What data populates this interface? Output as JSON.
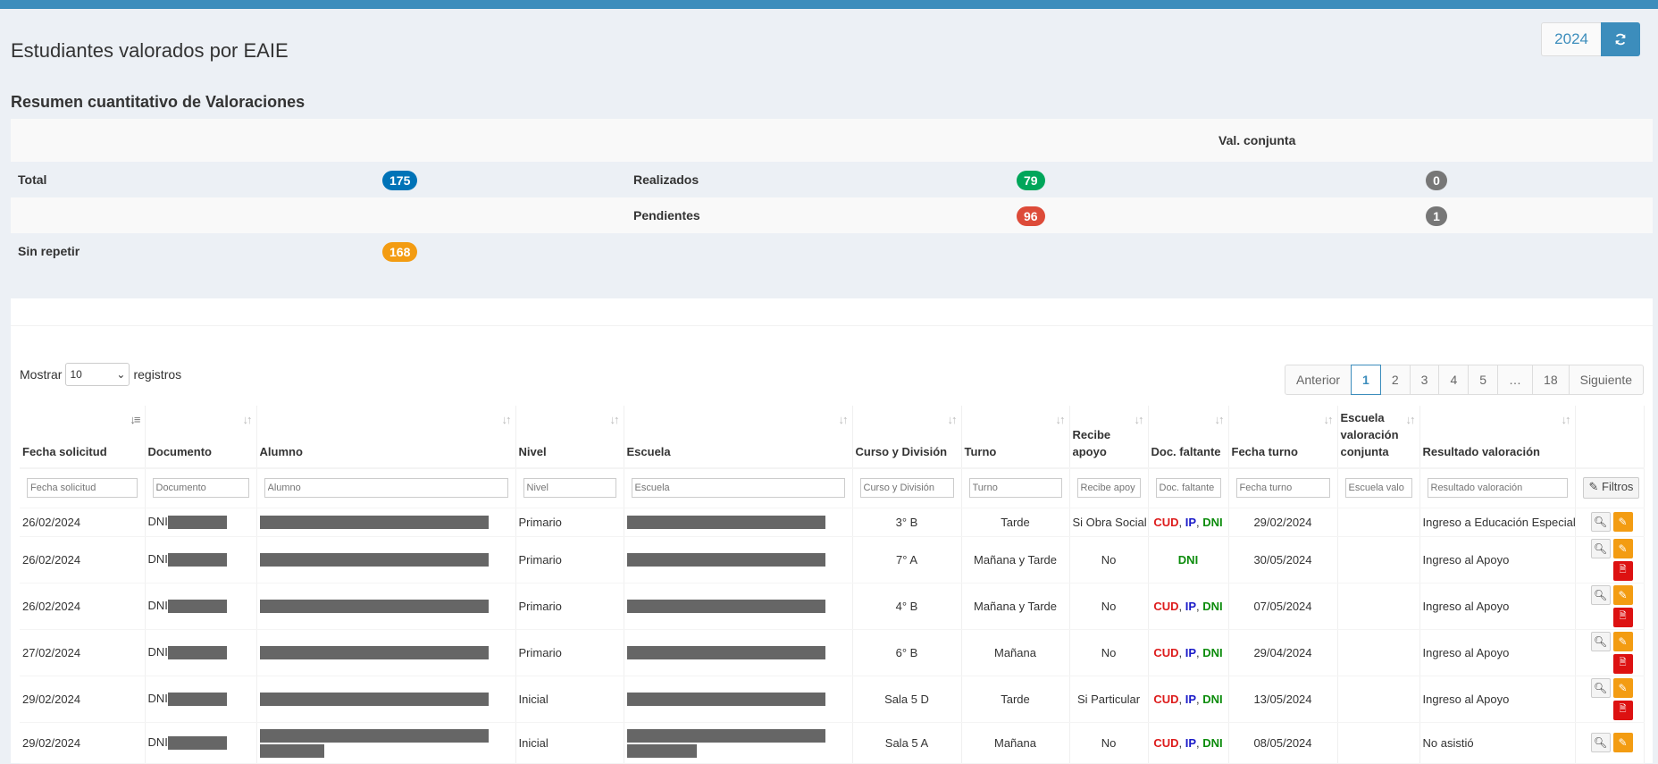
{
  "page": {
    "title": "Estudiantes valorados por EAIE"
  },
  "year_selector": {
    "value": "2024",
    "refresh_icon": "refresh-icon"
  },
  "summary": {
    "title": "Resumen cuantitativo de Valoraciones",
    "col_header": "Val. conjunta",
    "total_label": "Total",
    "total_value": "175",
    "realizados_label": "Realizados",
    "realizados_value": "79",
    "realizados_conjunta": "0",
    "pendientes_label": "Pendientes",
    "pendientes_value": "96",
    "pendientes_conjunta": "1",
    "sin_repetir_label": "Sin repetir",
    "sin_repetir_value": "168",
    "colors": {
      "blue": "#0073b7",
      "green": "#00a65a",
      "red": "#dd4b39",
      "grey": "#777777",
      "orange": "#f39c12"
    }
  },
  "length_menu": {
    "prefix": "Mostrar",
    "value": "10",
    "suffix": "registros"
  },
  "pagination": {
    "previous": "Anterior",
    "pages": [
      "1",
      "2",
      "3",
      "4",
      "5",
      "…",
      "18"
    ],
    "active": "1",
    "next": "Siguiente"
  },
  "table": {
    "headers": {
      "fecha": "Fecha solicitud",
      "documento": "Documento",
      "alumno": "Alumno",
      "nivel": "Nivel",
      "escuela": "Escuela",
      "curso": "Curso y División",
      "turno": "Turno",
      "recibe": "Recibe apoyo",
      "doc": "Doc. faltante",
      "fecha_turno": "Fecha turno",
      "conjunta": "Escuela valoración conjunta",
      "resultado": "Resultado valoración"
    },
    "filters": {
      "fecha": "Fecha solicitud",
      "documento": "Documento",
      "alumno": "Alumno",
      "nivel": "Nivel",
      "escuela": "Escuela",
      "curso": "Curso y División",
      "turno": "Turno",
      "recibe": "Recibe apoy",
      "doc": "Doc. faltante",
      "fecha_turno": "Fecha turno",
      "conjunta": "Escuela valo",
      "resultado": "Resultado valoración",
      "button": "Filtros"
    },
    "doc_prefix": "DNI",
    "rows": [
      {
        "fecha": "26/02/2024",
        "nivel": "Primario",
        "curso": "3° B",
        "turno": "Tarde",
        "recibe": "Si Obra Social",
        "docs": [
          "CUD",
          "IP",
          "DNI"
        ],
        "fecha_turno": "29/02/2024",
        "resultado": "Ingreso a Educación Especial",
        "pdf": false
      },
      {
        "fecha": "26/02/2024",
        "nivel": "Primario",
        "curso": "7° A",
        "turno": "Mañana y Tarde",
        "recibe": "No",
        "docs": [
          "DNI"
        ],
        "fecha_turno": "30/05/2024",
        "resultado": "Ingreso al Apoyo",
        "pdf": true
      },
      {
        "fecha": "26/02/2024",
        "nivel": "Primario",
        "curso": "4° B",
        "turno": "Mañana y Tarde",
        "recibe": "No",
        "docs": [
          "CUD",
          "IP",
          "DNI"
        ],
        "fecha_turno": "07/05/2024",
        "resultado": "Ingreso al Apoyo",
        "pdf": true
      },
      {
        "fecha": "27/02/2024",
        "nivel": "Primario",
        "curso": "6° B",
        "turno": "Mañana",
        "recibe": "No",
        "docs": [
          "CUD",
          "IP",
          "DNI"
        ],
        "fecha_turno": "29/04/2024",
        "resultado": "Ingreso al Apoyo",
        "pdf": true
      },
      {
        "fecha": "29/02/2024",
        "nivel": "Inicial",
        "curso": "Sala 5 D",
        "turno": "Tarde",
        "recibe": "Si Particular",
        "docs": [
          "CUD",
          "IP",
          "DNI"
        ],
        "fecha_turno": "13/05/2024",
        "resultado": "Ingreso al Apoyo",
        "pdf": true
      },
      {
        "fecha": "29/02/2024",
        "nivel": "Inicial",
        "curso": "Sala 5 A",
        "turno": "Mañana",
        "recibe": "No",
        "docs": [
          "CUD",
          "IP",
          "DNI"
        ],
        "fecha_turno": "08/05/2024",
        "resultado": "No asistió",
        "pdf": false
      }
    ]
  }
}
